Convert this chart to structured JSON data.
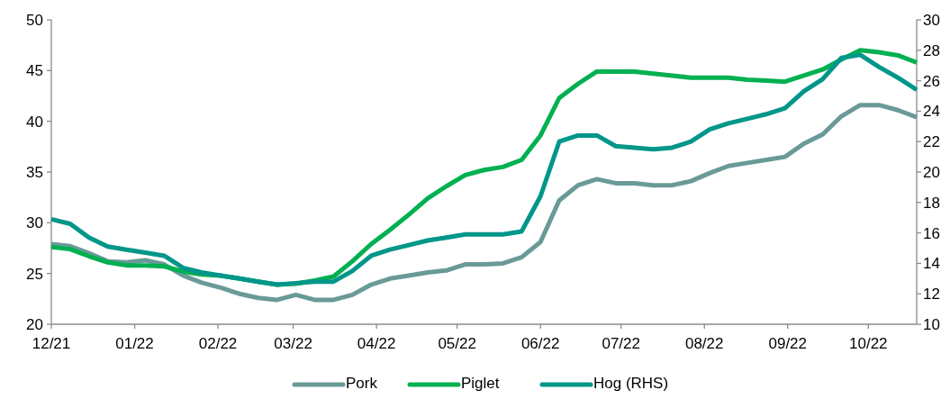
{
  "chart_data": {
    "type": "line",
    "x": [
      "2021-12-01",
      "2021-12-08",
      "2021-12-15",
      "2021-12-22",
      "2021-12-29",
      "2022-01-05",
      "2022-01-12",
      "2022-01-19",
      "2022-01-26",
      "2022-02-02",
      "2022-02-09",
      "2022-02-16",
      "2022-02-23",
      "2022-03-02",
      "2022-03-09",
      "2022-03-16",
      "2022-03-23",
      "2022-03-30",
      "2022-04-06",
      "2022-04-13",
      "2022-04-20",
      "2022-04-27",
      "2022-05-04",
      "2022-05-11",
      "2022-05-18",
      "2022-05-25",
      "2022-06-01",
      "2022-06-08",
      "2022-06-15",
      "2022-06-22",
      "2022-06-29",
      "2022-07-06",
      "2022-07-13",
      "2022-07-20",
      "2022-07-27",
      "2022-08-03",
      "2022-08-10",
      "2022-08-17",
      "2022-08-24",
      "2022-08-31",
      "2022-09-07",
      "2022-09-14",
      "2022-09-21",
      "2022-09-28",
      "2022-10-05",
      "2022-10-12",
      "2022-10-19"
    ],
    "series": [
      {
        "name": "Pork",
        "color": "#6a9a98",
        "values": [
          27.9,
          27.7,
          27.0,
          26.2,
          26.1,
          26.3,
          25.9,
          24.8,
          24.1,
          23.6,
          23.0,
          22.6,
          22.4,
          22.9,
          22.4,
          22.4,
          22.9,
          23.9,
          24.5,
          24.8,
          25.1,
          25.3,
          25.9,
          25.9,
          26.0,
          26.6,
          28.1,
          32.2,
          33.7,
          34.3,
          33.9,
          33.9,
          33.7,
          33.7,
          34.1,
          34.9,
          35.6,
          35.9,
          36.2,
          36.5,
          37.8,
          38.7,
          40.5,
          41.6,
          41.6,
          41.1,
          40.4
        ]
      },
      {
        "name": "Piglet",
        "color": "#00b050",
        "values": [
          27.6,
          27.4,
          26.7,
          26.1,
          25.8,
          25.8,
          25.7,
          25.2,
          24.9,
          24.8,
          24.5,
          24.2,
          23.9,
          24.0,
          24.3,
          24.7,
          26.2,
          27.9,
          29.3,
          30.8,
          32.4,
          33.6,
          34.7,
          35.2,
          35.5,
          36.2,
          38.6,
          42.3,
          43.7,
          44.9,
          44.9,
          44.9,
          44.7,
          44.5,
          44.3,
          44.3,
          44.3,
          44.1,
          44.0,
          43.9,
          44.5,
          45.1,
          46.1,
          47.0,
          46.8,
          46.5,
          45.8
        ]
      },
      {
        "name": "Hog (RHS)",
        "color": "#00968a",
        "axis": "y2",
        "values": [
          16.9,
          16.6,
          15.7,
          15.1,
          14.9,
          14.7,
          14.5,
          13.7,
          13.4,
          13.2,
          13.0,
          12.8,
          12.6,
          12.7,
          12.8,
          12.8,
          13.5,
          14.5,
          14.9,
          15.2,
          15.5,
          15.7,
          15.9,
          15.9,
          15.9,
          16.1,
          18.4,
          22.0,
          22.4,
          22.4,
          21.7,
          21.6,
          21.5,
          21.6,
          22.0,
          22.8,
          23.2,
          23.5,
          23.8,
          24.2,
          25.3,
          26.1,
          27.5,
          27.7,
          26.9,
          26.2,
          25.4
        ]
      }
    ],
    "xlim": [
      "2021-12-01",
      "2022-10-19"
    ],
    "xticks": [
      {
        "value": "2021-12-01",
        "label": "12/21"
      },
      {
        "value": "2022-01-01",
        "label": "01/22"
      },
      {
        "value": "2022-02-01",
        "label": "02/22"
      },
      {
        "value": "2022-03-01",
        "label": "03/22"
      },
      {
        "value": "2022-04-01",
        "label": "04/22"
      },
      {
        "value": "2022-05-01",
        "label": "05/22"
      },
      {
        "value": "2022-06-01",
        "label": "06/22"
      },
      {
        "value": "2022-07-01",
        "label": "07/22"
      },
      {
        "value": "2022-08-01",
        "label": "08/22"
      },
      {
        "value": "2022-09-01",
        "label": "09/22"
      },
      {
        "value": "2022-10-01",
        "label": "10/22"
      }
    ],
    "ylim": [
      20,
      50
    ],
    "yticks": [
      20,
      25,
      30,
      35,
      40,
      45,
      50
    ],
    "y2lim": [
      10,
      30
    ],
    "y2ticks": [
      10,
      12,
      14,
      16,
      18,
      20,
      22,
      24,
      26,
      28,
      30
    ],
    "grid": false,
    "legend": "bottom",
    "line_style": "solid",
    "marker": "none"
  }
}
